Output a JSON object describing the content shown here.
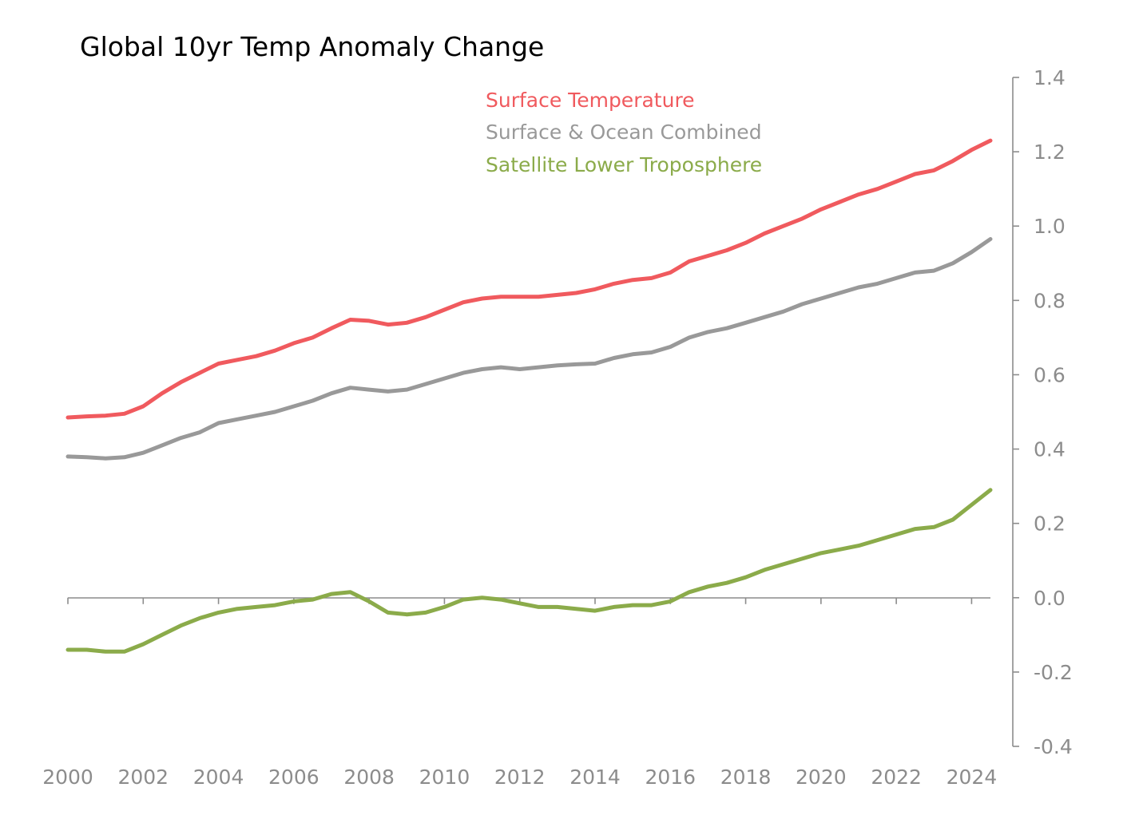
{
  "chart_data": {
    "type": "line",
    "title": "Global 10yr Temp Anomaly Change",
    "xlim": [
      2000,
      2024.5
    ],
    "ylim": [
      -0.4,
      1.4
    ],
    "x_ticks": [
      "2000",
      "2002",
      "2004",
      "2006",
      "2008",
      "2010",
      "2012",
      "2014",
      "2016",
      "2018",
      "2020",
      "2022",
      "2024"
    ],
    "y_ticks": [
      "1.4",
      "1.2",
      "1.0",
      "0.8",
      "0.6",
      "0.4",
      "0.2",
      "0.0",
      "-0.2",
      "-0.4"
    ],
    "y_axis_position": "right",
    "grid": false,
    "legend_position": "top-center",
    "series": [
      {
        "name": "Surface Temperature",
        "color": "#f05a5e",
        "x": [
          2000,
          2000.5,
          2001,
          2001.5,
          2002,
          2002.5,
          2003,
          2003.5,
          2004,
          2004.5,
          2005,
          2005.5,
          2006,
          2006.5,
          2007,
          2007.5,
          2008,
          2008.5,
          2009,
          2009.5,
          2010,
          2010.5,
          2011,
          2011.5,
          2012,
          2012.5,
          2013,
          2013.5,
          2014,
          2014.5,
          2015,
          2015.5,
          2016,
          2016.5,
          2017,
          2017.5,
          2018,
          2018.5,
          2019,
          2019.5,
          2020,
          2020.5,
          2021,
          2021.5,
          2022,
          2022.5,
          2023,
          2023.5,
          2024,
          2024.5
        ],
        "values": [
          0.485,
          0.488,
          0.49,
          0.495,
          0.515,
          0.55,
          0.58,
          0.605,
          0.63,
          0.64,
          0.65,
          0.665,
          0.685,
          0.7,
          0.725,
          0.748,
          0.745,
          0.735,
          0.74,
          0.755,
          0.775,
          0.795,
          0.805,
          0.81,
          0.81,
          0.81,
          0.815,
          0.82,
          0.83,
          0.845,
          0.855,
          0.86,
          0.875,
          0.905,
          0.92,
          0.935,
          0.955,
          0.98,
          1.0,
          1.02,
          1.045,
          1.065,
          1.085,
          1.1,
          1.12,
          1.14,
          1.15,
          1.175,
          1.205,
          1.23
        ]
      },
      {
        "name": "Surface & Ocean Combined",
        "color": "#999999",
        "x": [
          2000,
          2000.5,
          2001,
          2001.5,
          2002,
          2002.5,
          2003,
          2003.5,
          2004,
          2004.5,
          2005,
          2005.5,
          2006,
          2006.5,
          2007,
          2007.5,
          2008,
          2008.5,
          2009,
          2009.5,
          2010,
          2010.5,
          2011,
          2011.5,
          2012,
          2012.5,
          2013,
          2013.5,
          2014,
          2014.5,
          2015,
          2015.5,
          2016,
          2016.5,
          2017,
          2017.5,
          2018,
          2018.5,
          2019,
          2019.5,
          2020,
          2020.5,
          2021,
          2021.5,
          2022,
          2022.5,
          2023,
          2023.5,
          2024,
          2024.5
        ],
        "values": [
          0.38,
          0.378,
          0.375,
          0.378,
          0.39,
          0.41,
          0.43,
          0.445,
          0.47,
          0.48,
          0.49,
          0.5,
          0.515,
          0.53,
          0.55,
          0.565,
          0.56,
          0.555,
          0.56,
          0.575,
          0.59,
          0.605,
          0.615,
          0.62,
          0.615,
          0.62,
          0.625,
          0.628,
          0.63,
          0.645,
          0.655,
          0.66,
          0.675,
          0.7,
          0.715,
          0.725,
          0.74,
          0.755,
          0.77,
          0.79,
          0.805,
          0.82,
          0.835,
          0.845,
          0.86,
          0.875,
          0.88,
          0.9,
          0.93,
          0.965
        ]
      },
      {
        "name": "Satellite Lower Troposphere",
        "color": "#8bab4a",
        "x": [
          2000,
          2000.5,
          2001,
          2001.5,
          2002,
          2002.5,
          2003,
          2003.5,
          2004,
          2004.5,
          2005,
          2005.5,
          2006,
          2006.5,
          2007,
          2007.5,
          2008,
          2008.5,
          2009,
          2009.5,
          2010,
          2010.5,
          2011,
          2011.5,
          2012,
          2012.5,
          2013,
          2013.5,
          2014,
          2014.5,
          2015,
          2015.5,
          2016,
          2016.5,
          2017,
          2017.5,
          2018,
          2018.5,
          2019,
          2019.5,
          2020,
          2020.5,
          2021,
          2021.5,
          2022,
          2022.5,
          2023,
          2023.5,
          2024,
          2024.5
        ],
        "values": [
          -0.14,
          -0.14,
          -0.145,
          -0.145,
          -0.125,
          -0.1,
          -0.075,
          -0.055,
          -0.04,
          -0.03,
          -0.025,
          -0.02,
          -0.01,
          -0.005,
          0.01,
          0.015,
          -0.01,
          -0.04,
          -0.045,
          -0.04,
          -0.025,
          -0.005,
          0.0,
          -0.005,
          -0.015,
          -0.025,
          -0.025,
          -0.03,
          -0.035,
          -0.025,
          -0.02,
          -0.02,
          -0.01,
          0.015,
          0.03,
          0.04,
          0.055,
          0.075,
          0.09,
          0.105,
          0.12,
          0.13,
          0.14,
          0.155,
          0.17,
          0.185,
          0.19,
          0.21,
          0.25,
          0.29
        ]
      }
    ]
  }
}
